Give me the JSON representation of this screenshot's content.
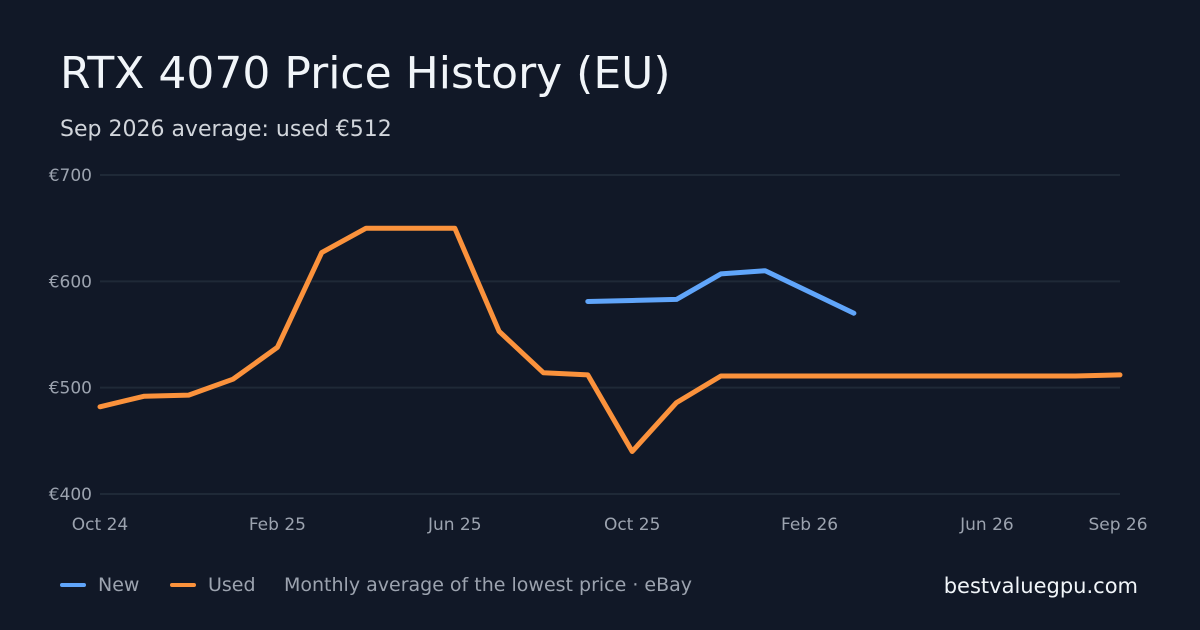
{
  "header": {
    "title": "RTX 4070 Price History (EU)",
    "subtitle": "Sep 2026 average: used €512"
  },
  "footer": {
    "note": "Monthly average of the lowest price · eBay",
    "brand": "bestvaluegpu.com"
  },
  "colors": {
    "background": "#111827",
    "grid": "#1f2937",
    "new": "#60a5fa",
    "used": "#fb923c",
    "tick_text": "#9ca3af"
  },
  "chart_data": {
    "type": "line",
    "title": "RTX 4070 Price History (EU)",
    "subtitle": "Sep 2026 average: used €512",
    "x": [
      "Oct 24",
      "Nov 24",
      "Dec 24",
      "Jan 25",
      "Feb 25",
      "Mar 25",
      "Apr 25",
      "May 25",
      "Jun 25",
      "Jul 25",
      "Aug 25",
      "Sep 25",
      "Oct 25",
      "Nov 25",
      "Dec 25",
      "Jan 26",
      "Feb 26",
      "Mar 26",
      "Apr 26",
      "May 26",
      "Jun 26",
      "Jul 26",
      "Aug 26",
      "Sep 26"
    ],
    "x_ticks": [
      "Oct 24",
      "Feb 25",
      "Jun 25",
      "Oct 25",
      "Feb 26",
      "Jun 26",
      "Sep 26"
    ],
    "y_ticks": [
      {
        "value": 400,
        "label": "€400"
      },
      {
        "value": 500,
        "label": "€500"
      },
      {
        "value": 600,
        "label": "€600"
      },
      {
        "value": 700,
        "label": "€700"
      }
    ],
    "ylim": [
      400,
      700
    ],
    "grid": true,
    "legend_position": "bottom-left",
    "series": [
      {
        "name": "New",
        "color": "#60a5fa",
        "values": [
          null,
          null,
          null,
          null,
          null,
          null,
          null,
          null,
          null,
          null,
          null,
          581,
          582,
          583,
          607,
          610,
          590,
          570,
          null,
          null,
          null,
          null,
          null,
          null
        ]
      },
      {
        "name": "Used",
        "color": "#fb923c",
        "values": [
          482,
          492,
          493,
          508,
          538,
          627,
          650,
          650,
          650,
          553,
          514,
          512,
          440,
          486,
          511,
          511,
          511,
          511,
          511,
          511,
          511,
          511,
          511,
          512
        ]
      }
    ]
  }
}
